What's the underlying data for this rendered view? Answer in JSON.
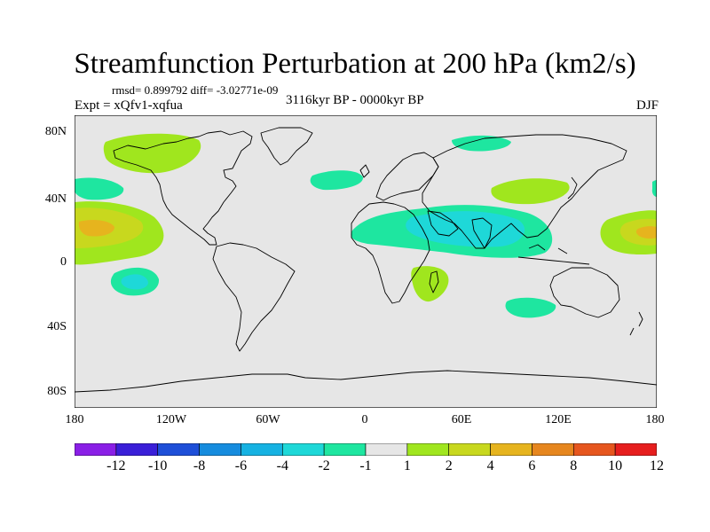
{
  "title": "Streamfunction Perturbation at 200 hPa (km2/s)",
  "stats_line": "rmsd= 0.899792 diff= -3.02771e-09",
  "expt_label": "Expt = xQfv1-xqfua",
  "period_label": "3116kyr BP - 0000kyr BP",
  "season_label": "DJF",
  "y_axis_labels": [
    "80N",
    "40N",
    "0",
    "40S",
    "80S"
  ],
  "x_axis_labels": [
    "180",
    "120W",
    "60W",
    "0",
    "60E",
    "120E",
    "180"
  ],
  "colorbar": {
    "labels": [
      "-12",
      "-10",
      "-8",
      "-6",
      "-4",
      "-2",
      "-1",
      "1",
      "2",
      "4",
      "6",
      "8",
      "10",
      "12"
    ],
    "colors": [
      "#8a1fe6",
      "#3a1fd8",
      "#1e4fd8",
      "#168cde",
      "#16b2e2",
      "#1ed8d8",
      "#1ee6a0",
      "#e6e6e6",
      "#a0e61e",
      "#c8d81e",
      "#e6b41e",
      "#e6861e",
      "#e6561e",
      "#e61e1e"
    ]
  },
  "map_background": "#e6e6e6",
  "chart_data": {
    "type": "contour-map",
    "projection": "cylindrical-equidistant",
    "lon_range": [
      -180,
      180
    ],
    "lat_range": [
      -90,
      90
    ],
    "variable": "streamfunction perturbation, 200 hPa",
    "units": "km2/s",
    "contour_levels": [
      -12,
      -10,
      -8,
      -6,
      -4,
      -2,
      -1,
      1,
      2,
      4,
      6,
      8,
      10,
      12
    ],
    "features": [
      {
        "name": "north-pacific-positive",
        "lon": -172,
        "lat": 19,
        "max_level": 6
      },
      {
        "name": "south-pacific-negative",
        "lon": -145,
        "lat": -14,
        "min_level": -4
      },
      {
        "name": "north-america-positive",
        "lon": -135,
        "lat": 62,
        "max_level": 2
      },
      {
        "name": "arctic-siberia-negative",
        "lon": 60,
        "lat": 68,
        "min_level": -2
      },
      {
        "name": "north-atlantic-negative",
        "lon": -20,
        "lat": 46,
        "min_level": -1
      },
      {
        "name": "asia-africa-negative",
        "lon": 60,
        "lat": 18,
        "min_level": -4
      },
      {
        "name": "madagascar-positive",
        "lon": 42,
        "lat": -12,
        "max_level": 2
      },
      {
        "name": "north-pacific-east-asia-positive",
        "lon": 118,
        "lat": 44,
        "max_level": 2
      },
      {
        "name": "southern-indian-ocean-negative",
        "lon": 102,
        "lat": -28,
        "min_level": -1
      },
      {
        "name": "central-pacific-positive",
        "lon": 170,
        "lat": 15,
        "max_level": 6
      }
    ]
  }
}
